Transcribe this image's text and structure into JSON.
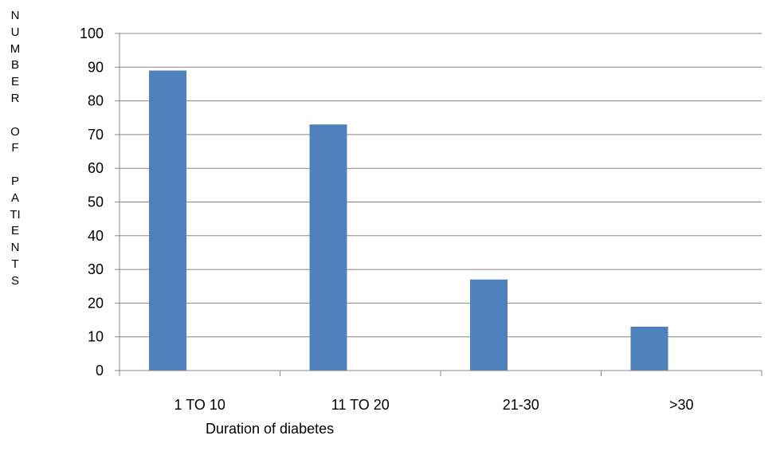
{
  "chart_data": {
    "type": "bar",
    "title": "",
    "xlabel": "Duration of diabetes",
    "ylabel_lines": [
      "N",
      "U",
      "M",
      "B",
      "E",
      "R",
      "",
      "O",
      "F",
      "",
      "P",
      "A",
      "TI",
      "E",
      "N",
      "T",
      "S"
    ],
    "categories": [
      "1 TO 10",
      "11 TO 20",
      "21-30",
      ">30"
    ],
    "series": [
      {
        "values": [
          89,
          73,
          27,
          13
        ]
      }
    ],
    "ylim": [
      0,
      100
    ],
    "yticks": [
      0,
      10,
      20,
      30,
      40,
      50,
      60,
      70,
      80,
      90,
      100
    ],
    "grid": true,
    "legend": "none",
    "bar_color": "#4f81bd",
    "grid_color": "#888888"
  }
}
